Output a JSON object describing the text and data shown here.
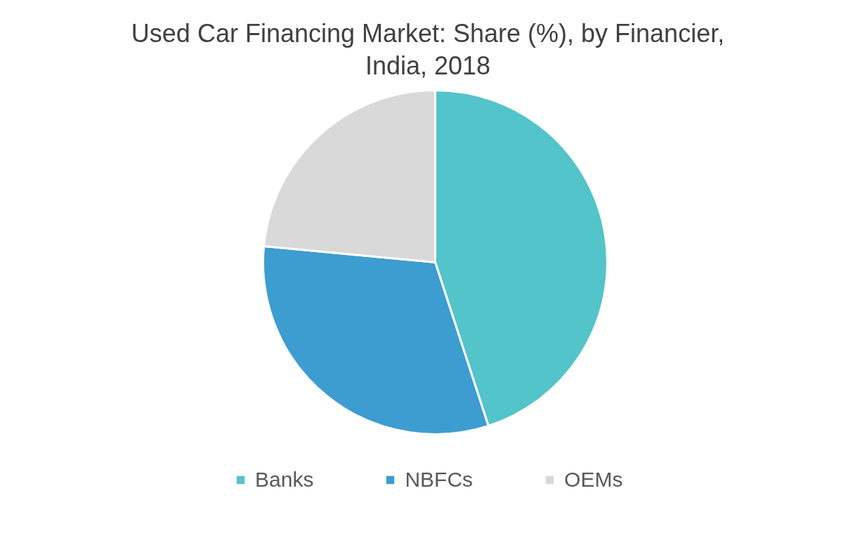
{
  "chart_data": {
    "type": "pie",
    "title": "Used Car Financing Market: Share (%), by Financier, India, 2018",
    "categories": [
      "Banks",
      "NBFCs",
      "OEMs"
    ],
    "values": [
      45,
      31.5,
      23.5
    ],
    "colors": [
      "#53c4c9",
      "#3d9dd0",
      "#d9d9d9"
    ],
    "legend": "bottom"
  }
}
